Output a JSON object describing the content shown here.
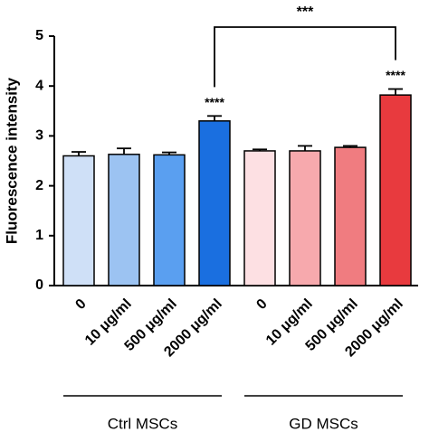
{
  "chart_data": {
    "type": "bar",
    "ylabel": "Fluorescence intensity",
    "categories": [
      "0",
      "10 μg/ml",
      "500 μg/ml",
      "2000 μg/ml",
      "0",
      "10 μg/ml",
      "500 μg/ml",
      "2000 μg/ml"
    ],
    "values": [
      2.6,
      2.63,
      2.62,
      3.3,
      2.7,
      2.7,
      2.77,
      3.82
    ],
    "errors": [
      0.08,
      0.12,
      0.05,
      0.1,
      0.03,
      0.1,
      0.03,
      0.12
    ],
    "colors": [
      "#cfe0f7",
      "#9cc3f2",
      "#5a9ff0",
      "#1a6fe0",
      "#fde0e3",
      "#f7a9ad",
      "#f07c80",
      "#e83a3e"
    ],
    "ylim": [
      0,
      5
    ],
    "yticks": [
      0,
      1,
      2,
      3,
      4,
      5
    ],
    "groups": [
      {
        "name": "Ctrl MSCs",
        "start": 0,
        "end": 3
      },
      {
        "name": "GD MSCs",
        "start": 4,
        "end": 7
      }
    ],
    "significance": [
      {
        "label": "****",
        "bar": 3
      },
      {
        "label": "****",
        "bar": 7
      }
    ],
    "comparison": {
      "label": "***",
      "from": 3,
      "to": 7
    }
  }
}
